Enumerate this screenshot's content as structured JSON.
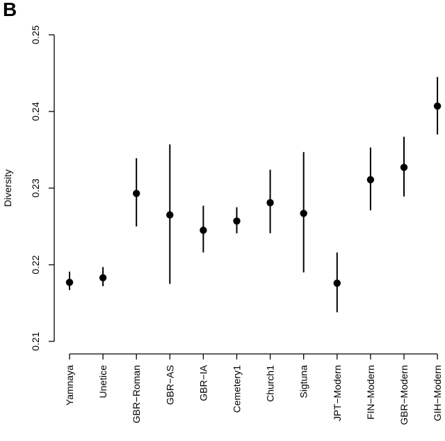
{
  "panel_label": "B",
  "chart_data": {
    "type": "scatter",
    "subtype": "point-with-error-bars",
    "title": "",
    "xlabel": "",
    "ylabel": "Diversity",
    "ylim": [
      0.21,
      0.25
    ],
    "yticks": [
      0.21,
      0.22,
      0.23,
      0.24,
      0.25
    ],
    "ytick_labels": [
      "0.21",
      "0.22",
      "0.23",
      "0.24",
      "0.25"
    ],
    "grid": false,
    "categories": [
      "Yamnaya",
      "Unetice",
      "GBR−Roman",
      "GBR−AS",
      "GBR−IA",
      "Cemetery1",
      "Church1",
      "Sigtuna",
      "JPT−Modern",
      "FIN−Modern",
      "GBR−Modern",
      "GIH−Modern"
    ],
    "values": [
      0.2177,
      0.2183,
      0.2293,
      0.2265,
      0.2245,
      0.2257,
      0.2281,
      0.2267,
      0.2176,
      0.2311,
      0.2327,
      0.2407
    ],
    "lower": [
      0.2167,
      0.2172,
      0.225,
      0.2175,
      0.2216,
      0.2241,
      0.2241,
      0.219,
      0.2138,
      0.2271,
      0.2289,
      0.237
    ],
    "upper": [
      0.2191,
      0.2197,
      0.2339,
      0.2357,
      0.2277,
      0.2275,
      0.2324,
      0.2347,
      0.2216,
      0.2353,
      0.2367,
      0.2445
    ],
    "point_color": "#000000"
  }
}
